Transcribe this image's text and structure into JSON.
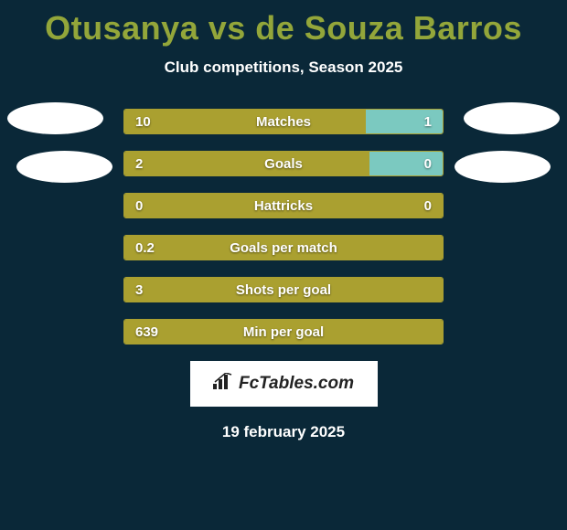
{
  "title": "Otusanya vs de Souza Barros",
  "subtitle": "Club competitions, Season 2025",
  "colors": {
    "background": "#0a2838",
    "title": "#93a63a",
    "text": "#ffffff",
    "left_bar": "#aaa030",
    "right_bar": "#7bc9c0",
    "border": "#aaa030"
  },
  "stats": [
    {
      "label": "Matches",
      "left_val": "10",
      "right_val": "1",
      "left_pct": 76,
      "right_pct": 24
    },
    {
      "label": "Goals",
      "left_val": "2",
      "right_val": "0",
      "left_pct": 77,
      "right_pct": 23
    },
    {
      "label": "Hattricks",
      "left_val": "0",
      "right_val": "0",
      "left_pct": 100,
      "right_pct": 0
    },
    {
      "label": "Goals per match",
      "left_val": "0.2",
      "right_val": "",
      "left_pct": 100,
      "right_pct": 0
    },
    {
      "label": "Shots per goal",
      "left_val": "3",
      "right_val": "",
      "left_pct": 100,
      "right_pct": 0
    },
    {
      "label": "Min per goal",
      "left_val": "639",
      "right_val": "",
      "left_pct": 100,
      "right_pct": 0
    }
  ],
  "branding": "FcTables.com",
  "date": "19 february 2025"
}
